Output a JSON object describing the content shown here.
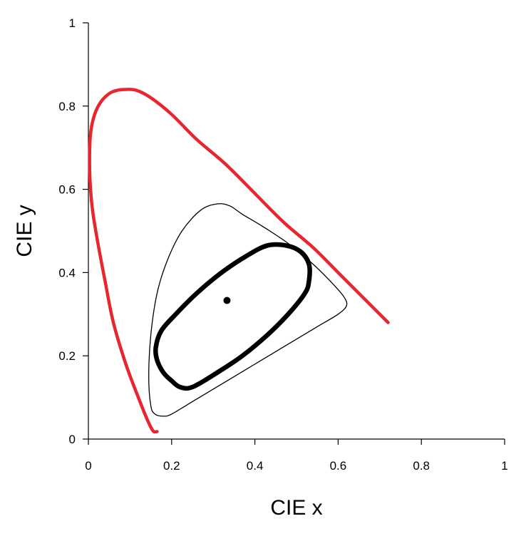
{
  "chart_data": {
    "type": "line",
    "title": "",
    "xlabel": "CIE x",
    "ylabel": "CIE y",
    "xlim": [
      0,
      1
    ],
    "ylim": [
      0,
      1
    ],
    "xticks": [
      "0",
      "0.2",
      "0.4",
      "0.6",
      "0.8",
      "1"
    ],
    "yticks": [
      "0",
      "0.2",
      "0.4",
      "0.6",
      "0.8",
      "1"
    ],
    "grid": false,
    "colors": {
      "locus": "#e8262f",
      "outline": "#000000"
    },
    "series": [
      {
        "id": "spectral-locus",
        "style": "thick-red",
        "x": [
          0.165,
          0.155,
          0.14,
          0.12,
          0.09,
          0.06,
          0.04,
          0.023,
          0.01,
          0.004,
          0.003,
          0.006,
          0.015,
          0.03,
          0.05,
          0.07,
          0.09,
          0.115,
          0.15,
          0.2,
          0.26,
          0.33,
          0.4,
          0.47,
          0.54,
          0.6,
          0.66,
          0.72
        ],
        "y": [
          0.018,
          0.02,
          0.05,
          0.1,
          0.18,
          0.28,
          0.38,
          0.47,
          0.55,
          0.62,
          0.69,
          0.74,
          0.78,
          0.81,
          0.83,
          0.838,
          0.84,
          0.838,
          0.82,
          0.78,
          0.72,
          0.66,
          0.59,
          0.52,
          0.46,
          0.4,
          0.34,
          0.28
        ]
      },
      {
        "id": "outer-gamut",
        "style": "thin-black",
        "x": [
          0.18,
          0.16,
          0.15,
          0.145,
          0.15,
          0.165,
          0.19,
          0.225,
          0.27,
          0.31,
          0.34,
          0.37,
          0.42,
          0.48,
          0.54,
          0.59,
          0.615,
          0.62,
          0.6,
          0.55,
          0.5,
          0.45,
          0.4,
          0.35,
          0.3,
          0.25,
          0.2,
          0.18
        ],
        "y": [
          0.055,
          0.06,
          0.08,
          0.15,
          0.25,
          0.35,
          0.43,
          0.5,
          0.55,
          0.565,
          0.56,
          0.54,
          0.51,
          0.47,
          0.42,
          0.37,
          0.34,
          0.32,
          0.3,
          0.27,
          0.24,
          0.21,
          0.18,
          0.15,
          0.12,
          0.09,
          0.06,
          0.055
        ]
      },
      {
        "id": "mid-ellipse",
        "style": "thick-black",
        "x": [
          0.25,
          0.22,
          0.2,
          0.18,
          0.165,
          0.162,
          0.175,
          0.21,
          0.26,
          0.32,
          0.38,
          0.43,
          0.475,
          0.51,
          0.53,
          0.53,
          0.52,
          0.48,
          0.43,
          0.37,
          0.31,
          0.25
        ],
        "y": [
          0.125,
          0.125,
          0.14,
          0.16,
          0.19,
          0.22,
          0.26,
          0.3,
          0.35,
          0.4,
          0.44,
          0.465,
          0.465,
          0.45,
          0.42,
          0.38,
          0.35,
          0.3,
          0.25,
          0.2,
          0.16,
          0.125
        ]
      }
    ],
    "points": [
      {
        "id": "white-point",
        "x": 0.333,
        "y": 0.333
      }
    ]
  }
}
